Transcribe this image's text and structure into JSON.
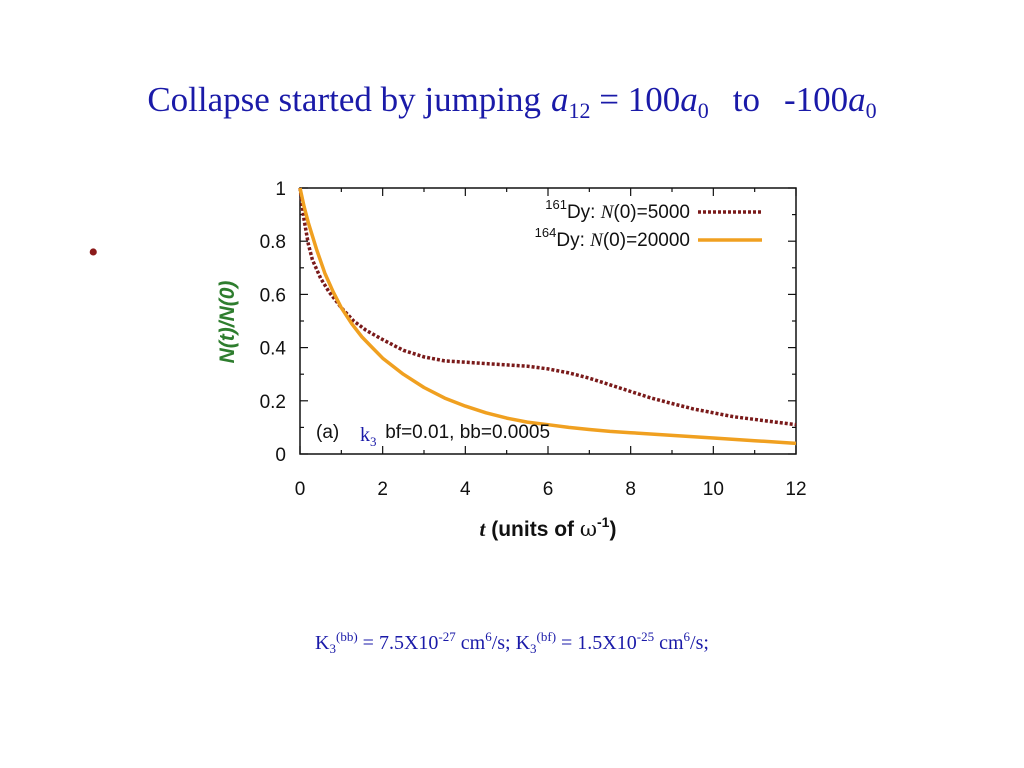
{
  "title": {
    "prefix": "Collapse started by jumping",
    "var_a": "a",
    "sub_12": "12",
    "equals": "= 100",
    "sub_0": "0",
    "to": "to",
    "minus": "-100"
  },
  "bullet": "•",
  "k3_note": {
    "k": "k",
    "sub": "3"
  },
  "footer": {
    "k_a": "K",
    "k_a_sub": "3",
    "k_a_sup": "(bb)",
    "k_a_eq": " = 7.5X10",
    "k_a_exp": "-27",
    "k_a_unit": " cm",
    "k_a_unit_exp": "6",
    "k_a_tail": "/s; K",
    "k_b_sub": "3",
    "k_b_sup": "(bf)",
    "k_b_eq": " = 1.5X10",
    "k_b_exp": "-25",
    "k_b_unit": " cm",
    "k_b_unit_exp": "6",
    "k_b_tail": "/s;"
  },
  "colors": {
    "title": "#1a1aa8",
    "bullet": "#8b1a1a",
    "series_dy161": "#7a1a1a",
    "series_dy164": "#f0a020",
    "ylabel": "#2e7d2e"
  },
  "chart_data": {
    "type": "line",
    "xlabel": "t (units of ω-1)",
    "xlabel_italic": "t",
    "xlabel_mid": " (units of ",
    "xlabel_omega": "ω",
    "xlabel_exp": "-1",
    "xlabel_close": ")",
    "ylabel": "N(t)/N(0)",
    "xlim": [
      0,
      12
    ],
    "ylim": [
      0,
      1
    ],
    "xticks": [
      "0",
      "2",
      "4",
      "6",
      "8",
      "10",
      "12"
    ],
    "yticks": [
      "0",
      "0.2",
      "0.4",
      "0.6",
      "0.8",
      "1"
    ],
    "annotation": "(a)  bf=0.01, bb=0.0005",
    "annotation_a": "(a)",
    "annotation_rest": "bf=0.01, bb=0.0005",
    "legend_position": "top-right",
    "series": [
      {
        "name": "161Dy: N(0)=5000",
        "legend_sup": "161",
        "legend_pre": "Dy: ",
        "legend_n": "N",
        "legend_post": "(0)=5000",
        "style": "dotted",
        "x": [
          0,
          0.1,
          0.2,
          0.3,
          0.5,
          0.7,
          1.0,
          1.3,
          1.6,
          2.0,
          2.5,
          3.0,
          3.5,
          4.0,
          4.5,
          5.0,
          5.5,
          6.0,
          6.5,
          7.0,
          7.5,
          8.0,
          8.5,
          9.0,
          9.5,
          10.0,
          10.5,
          11.0,
          11.5,
          12.0
        ],
        "y": [
          1.0,
          0.88,
          0.79,
          0.73,
          0.66,
          0.61,
          0.55,
          0.5,
          0.465,
          0.43,
          0.39,
          0.365,
          0.35,
          0.345,
          0.34,
          0.335,
          0.33,
          0.32,
          0.305,
          0.285,
          0.26,
          0.235,
          0.21,
          0.19,
          0.17,
          0.155,
          0.14,
          0.13,
          0.12,
          0.11
        ]
      },
      {
        "name": "164Dy: N(0)=20000",
        "legend_sup": "164",
        "legend_pre": "Dy: ",
        "legend_n": "N",
        "legend_post": "(0)=20000",
        "style": "solid",
        "x": [
          0,
          0.1,
          0.2,
          0.4,
          0.6,
          0.8,
          1.0,
          1.25,
          1.5,
          1.75,
          2.0,
          2.5,
          3.0,
          3.5,
          4.0,
          4.5,
          5.0,
          5.5,
          6.0,
          6.5,
          7.0,
          7.5,
          8.0,
          9.0,
          10.0,
          11.0,
          12.0
        ],
        "y": [
          1.0,
          0.93,
          0.87,
          0.77,
          0.68,
          0.61,
          0.55,
          0.49,
          0.44,
          0.4,
          0.36,
          0.3,
          0.25,
          0.21,
          0.18,
          0.155,
          0.135,
          0.12,
          0.11,
          0.1,
          0.092,
          0.085,
          0.08,
          0.07,
          0.06,
          0.05,
          0.04
        ]
      }
    ]
  }
}
